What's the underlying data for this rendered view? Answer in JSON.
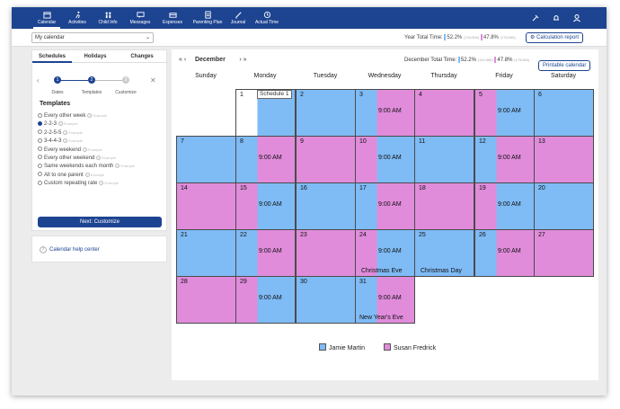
{
  "nav": {
    "items": [
      {
        "label": "Calendar",
        "icon": "calendar-icon",
        "active": true
      },
      {
        "label": "Activities",
        "icon": "activities-icon",
        "active": false
      },
      {
        "label": "Child Info",
        "icon": "child-info-icon",
        "active": false
      },
      {
        "label": "Messages",
        "icon": "messages-icon",
        "active": false
      },
      {
        "label": "Expenses",
        "icon": "expenses-icon",
        "active": false
      },
      {
        "label": "Parenting Plan",
        "icon": "parenting-plan-icon",
        "active": false
      },
      {
        "label": "Journal",
        "icon": "journal-icon",
        "active": false
      },
      {
        "label": "Actual Time",
        "icon": "actual-time-icon",
        "active": false
      }
    ],
    "right_icons": [
      "tools-icon",
      "bell-icon",
      "user-icon"
    ]
  },
  "toolbar": {
    "calendar_select": "My calendar",
    "year_total_label": "Year Total Time:",
    "year_pct_a": "52.2%",
    "year_pct_a_sub": "(191/366)",
    "year_pct_b": "47.8%",
    "year_pct_b_sub": "(175/366)",
    "calc_button": "Calculation report"
  },
  "sidebar": {
    "tabs": [
      "Schedules",
      "Holidays",
      "Changes"
    ],
    "steps": [
      {
        "num": "1",
        "label": "Dates"
      },
      {
        "num": "2",
        "label": "Templates"
      },
      {
        "num": "3",
        "label": "Customize"
      }
    ],
    "templates_title": "Templates",
    "templates": [
      {
        "label": "Every other week",
        "example": "Example",
        "selected": false
      },
      {
        "label": "2-2-3",
        "example": "Example",
        "selected": true
      },
      {
        "label": "2-2-5-5",
        "example": "Example",
        "selected": false
      },
      {
        "label": "3-4-4-3",
        "example": "Example",
        "selected": false
      },
      {
        "label": "Every weekend",
        "example": "Example",
        "selected": false
      },
      {
        "label": "Every other weekend",
        "example": "Example",
        "selected": false
      },
      {
        "label": "Same weekends each month",
        "example": "Example",
        "selected": false
      },
      {
        "label": "All to one parent",
        "example": "Example",
        "selected": false
      },
      {
        "label": "Custom repeating rate",
        "example": "Example",
        "selected": false
      }
    ],
    "next_button": "Next: Customize",
    "help_link": "Calendar help center"
  },
  "calendar": {
    "nav_prev_year": "«",
    "nav_prev": "‹",
    "month": "December",
    "nav_next": "›",
    "nav_next_year": "»",
    "month_total_label": "December Total Time:",
    "month_pct_a": "52.2%",
    "month_pct_a_sub": "(191/366)",
    "month_pct_b": "47.8%",
    "month_pct_b_sub": "(175/366)",
    "print_button": "Printable calendar",
    "days": [
      "Sunday",
      "Monday",
      "Tuesday",
      "Wednesday",
      "Thursday",
      "Friday",
      "Saturday"
    ],
    "schedule_label": "Schedule 1",
    "weeks": [
      [
        null,
        {
          "d": "1",
          "type": "split",
          "time": ""
        },
        {
          "d": "2",
          "type": "blue"
        },
        {
          "d": "3",
          "type": "split_bp",
          "time": "9:00 AM"
        },
        {
          "d": "4",
          "type": "pink"
        },
        {
          "d": "5",
          "type": "split_pb",
          "time": "9:00 AM"
        },
        {
          "d": "6",
          "type": "blue"
        }
      ],
      [
        {
          "d": "7",
          "type": "blue"
        },
        {
          "d": "8",
          "type": "split_bp",
          "time": "9:00 AM"
        },
        {
          "d": "9",
          "type": "pink"
        },
        {
          "d": "10",
          "type": "split_pb",
          "time": "9:00 AM"
        },
        {
          "d": "11",
          "type": "blue"
        },
        {
          "d": "12",
          "type": "split_bp",
          "time": "9:00 AM"
        },
        {
          "d": "13",
          "type": "pink"
        }
      ],
      [
        {
          "d": "14",
          "type": "pink"
        },
        {
          "d": "15",
          "type": "split_pb",
          "time": "9:00 AM"
        },
        {
          "d": "16",
          "type": "blue"
        },
        {
          "d": "17",
          "type": "split_bp",
          "time": "9:00 AM"
        },
        {
          "d": "18",
          "type": "pink"
        },
        {
          "d": "19",
          "type": "split_pb",
          "time": "9:00 AM"
        },
        {
          "d": "20",
          "type": "blue"
        }
      ],
      [
        {
          "d": "21",
          "type": "blue"
        },
        {
          "d": "22",
          "type": "split_bp",
          "time": "9:00 AM"
        },
        {
          "d": "23",
          "type": "pink"
        },
        {
          "d": "24",
          "type": "split_pb",
          "time": "9:00 AM",
          "holiday": "Christmas Eve"
        },
        {
          "d": "25",
          "type": "blue",
          "holiday": "Christmas Day"
        },
        {
          "d": "26",
          "type": "split_bp",
          "time": "9:00 AM"
        },
        {
          "d": "27",
          "type": "pink"
        }
      ],
      [
        {
          "d": "28",
          "type": "pink"
        },
        {
          "d": "29",
          "type": "split_pb",
          "time": "9:00 AM"
        },
        {
          "d": "30",
          "type": "blue"
        },
        {
          "d": "31",
          "type": "split_bp",
          "time": "9:00 AM",
          "holiday": "New Year's Eve"
        },
        null,
        null,
        null
      ]
    ],
    "legend": [
      {
        "name": "Jamie Martin",
        "color": "#7fbbf5"
      },
      {
        "name": "Susan Fredrick",
        "color": "#e08cdb"
      }
    ]
  },
  "colors": {
    "primary": "#1d4491",
    "blue": "#7fbbf5",
    "pink": "#e08cdb"
  }
}
